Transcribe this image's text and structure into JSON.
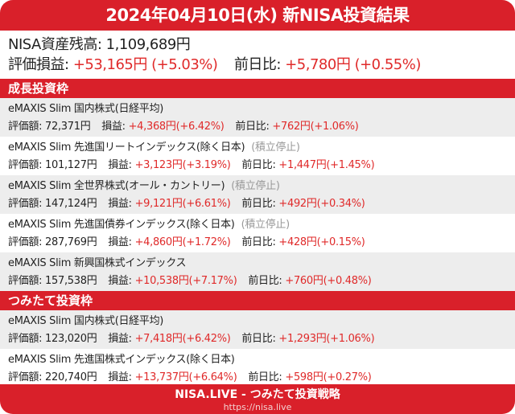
{
  "header": {
    "title": "2024年04月10日(水) 新NISA投資結果"
  },
  "summary": {
    "balance_label": "NISA資産残高:",
    "balance": "1,109,689円",
    "pl_label": "評価損益:",
    "pl": "+53,165円",
    "pl_pct": "(+5.03%)",
    "day_label": "前日比:",
    "day": "+5,780円",
    "day_pct": "(+0.55%)"
  },
  "labels": {
    "value": "評価額:",
    "pl": "損益:",
    "day": "前日比:"
  },
  "colors": {
    "brand": "#d9202a",
    "positive": "#e02a2a"
  },
  "sections": [
    {
      "title": "成長投資枠",
      "funds": [
        {
          "name": "eMAXIS Slim 国内株式(日経平均)",
          "note": "",
          "value": "72,371円",
          "pl": "+4,368円",
          "pl_pct": "(+6.42%)",
          "day": "+762円",
          "day_pct": "(+1.06%)"
        },
        {
          "name": "eMAXIS Slim 先進国リートインデックス(除く日本)",
          "note": "(積立停止)",
          "value": "101,127円",
          "pl": "+3,123円",
          "pl_pct": "(+3.19%)",
          "day": "+1,447円",
          "day_pct": "(+1.45%)"
        },
        {
          "name": "eMAXIS Slim 全世界株式(オール・カントリー)",
          "note": "(積立停止)",
          "value": "147,124円",
          "pl": "+9,121円",
          "pl_pct": "(+6.61%)",
          "day": "+492円",
          "day_pct": "(+0.34%)"
        },
        {
          "name": "eMAXIS Slim 先進国債券インデックス(除く日本)",
          "note": "(積立停止)",
          "value": "287,769円",
          "pl": "+4,860円",
          "pl_pct": "(+1.72%)",
          "day": "+428円",
          "day_pct": "(+0.15%)"
        },
        {
          "name": "eMAXIS Slim 新興国株式インデックス",
          "note": "",
          "value": "157,538円",
          "pl": "+10,538円",
          "pl_pct": "(+7.17%)",
          "day": "+760円",
          "day_pct": "(+0.48%)"
        }
      ]
    },
    {
      "title": "つみたて投資枠",
      "funds": [
        {
          "name": "eMAXIS Slim 国内株式(日経平均)",
          "note": "",
          "value": "123,020円",
          "pl": "+7,418円",
          "pl_pct": "(+6.42%)",
          "day": "+1,293円",
          "day_pct": "(+1.06%)"
        },
        {
          "name": "eMAXIS Slim 先進国株式インデックス(除く日本)",
          "note": "",
          "value": "220,740円",
          "pl": "+13,737円",
          "pl_pct": "(+6.64%)",
          "day": "+598円",
          "day_pct": "(+0.27%)"
        }
      ]
    }
  ],
  "footer": {
    "title": "NISA.LIVE - つみたて投資戦略",
    "url": "https://nisa.live"
  }
}
